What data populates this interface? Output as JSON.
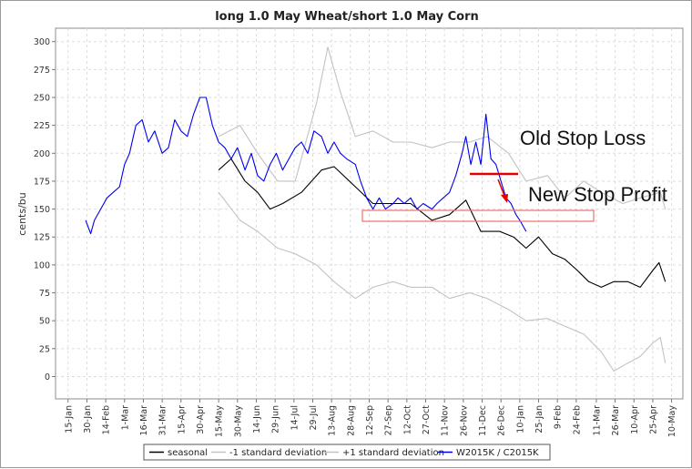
{
  "chart_data": {
    "type": "line",
    "title": "long 1.0 May Wheat/short 1.0 May Corn",
    "ylabel": "cents/bu",
    "xlabel": "",
    "ylim": [
      -20,
      312
    ],
    "yticks": [
      0,
      25,
      50,
      75,
      100,
      125,
      150,
      175,
      200,
      225,
      250,
      275,
      300
    ],
    "xlim": [
      "2015-01-05",
      "2015-05-19"
    ],
    "xtick_labels": [
      "15-Jan",
      "30-Jan",
      "14-Feb",
      "1-Mar",
      "16-Mar",
      "31-Mar",
      "15-Apr",
      "30-Apr",
      "15-May",
      "30-May",
      "14-Jun",
      "29-Jun",
      "14-Jul",
      "29-Jul",
      "13-Aug",
      "28-Aug",
      "12-Sep",
      "27-Sep",
      "12-Oct",
      "27-Oct",
      "11-Nov",
      "26-Nov",
      "11-Dec",
      "26-Dec",
      "10-Jan",
      "25-Jan",
      "9-Feb",
      "24-Feb",
      "11-Mar",
      "26-Mar",
      "10-Apr",
      "25-Apr",
      "10-May"
    ],
    "grid": true,
    "legend_position": "bottom",
    "series": [
      {
        "name": "seasonal",
        "color": "#000000",
        "x": [
          "15-May",
          "25-May",
          "5-Jun",
          "15-Jun",
          "25-Jun",
          "5-Jul",
          "20-Jul",
          "5-Aug",
          "15-Aug",
          "1-Sep",
          "15-Sep",
          "1-Oct",
          "15-Oct",
          "1-Nov",
          "15-Nov",
          "28-Nov",
          "10-Dec",
          "25-Dec",
          "5-Jan",
          "15-Jan",
          "25-Jan",
          "5-Feb",
          "15-Feb",
          "25-Feb",
          "5-Mar",
          "15-Mar",
          "25-Mar",
          "5-Apr",
          "15-Apr",
          "25-Apr",
          "30-Apr",
          "5-May"
        ],
        "y": [
          185,
          195,
          175,
          165,
          150,
          155,
          165,
          185,
          188,
          170,
          155,
          155,
          155,
          140,
          145,
          158,
          130,
          130,
          125,
          115,
          125,
          110,
          105,
          95,
          85,
          80,
          85,
          85,
          80,
          95,
          102,
          85
        ]
      },
      {
        "name": "-1 standard deviation",
        "color": "#c2c2c2",
        "x": [
          "15-May",
          "1-Jun",
          "15-Jun",
          "1-Jul",
          "15-Jul",
          "1-Aug",
          "15-Aug",
          "1-Sep",
          "15-Sep",
          "1-Oct",
          "15-Oct",
          "1-Nov",
          "15-Nov",
          "1-Dec",
          "15-Dec",
          "1-Jan",
          "15-Jan",
          "1-Feb",
          "15-Feb",
          "1-Mar",
          "15-Mar",
          "25-Mar",
          "5-Apr",
          "15-Apr",
          "25-Apr",
          "1-May",
          "5-May"
        ],
        "y": [
          165,
          140,
          130,
          115,
          110,
          100,
          85,
          70,
          80,
          85,
          80,
          80,
          70,
          75,
          70,
          60,
          50,
          52,
          45,
          38,
          22,
          5,
          12,
          18,
          30,
          35,
          12
        ]
      },
      {
        "name": "+1 standard deviation",
        "color": "#c2c2c2",
        "x": [
          "15-May",
          "1-Jun",
          "15-Jun",
          "1-Jul",
          "15-Jul",
          "1-Aug",
          "10-Aug",
          "20-Aug",
          "1-Sep",
          "15-Sep",
          "1-Oct",
          "15-Oct",
          "1-Nov",
          "15-Nov",
          "1-Dec",
          "15-Dec",
          "1-Jan",
          "15-Jan",
          "1-Feb",
          "15-Feb",
          "1-Mar",
          "15-Mar",
          "1-Apr",
          "15-Apr",
          "1-May",
          "5-May"
        ],
        "y": [
          215,
          225,
          200,
          175,
          175,
          245,
          295,
          255,
          215,
          220,
          210,
          210,
          205,
          210,
          210,
          215,
          200,
          175,
          180,
          160,
          175,
          165,
          155,
          160,
          165,
          150
        ]
      },
      {
        "name": "W2015K / C2015K",
        "color": "#0000ee",
        "x": [
          "29-Jan",
          "2-Feb",
          "5-Feb",
          "10-Feb",
          "15-Feb",
          "20-Feb",
          "25-Feb",
          "1-Mar",
          "5-Mar",
          "10-Mar",
          "15-Mar",
          "20-Mar",
          "25-Mar",
          "31-Mar",
          "5-Apr",
          "10-Apr",
          "15-Apr",
          "20-Apr",
          "25-Apr",
          "30-Apr",
          "5-May",
          "10-May",
          "15-May",
          "20-May",
          "25-May",
          "30-May",
          "5-Jun",
          "10-Jun",
          "15-Jun",
          "20-Jun",
          "25-Jun",
          "30-Jun",
          "5-Jul",
          "10-Jul",
          "15-Jul",
          "20-Jul",
          "25-Jul",
          "30-Jul",
          "5-Aug",
          "10-Aug",
          "15-Aug",
          "20-Aug",
          "25-Aug",
          "1-Sep",
          "5-Sep",
          "10-Sep",
          "15-Sep",
          "20-Sep",
          "25-Sep",
          "1-Oct",
          "5-Oct",
          "10-Oct",
          "15-Oct",
          "20-Oct",
          "25-Oct",
          "1-Nov",
          "5-Nov",
          "10-Nov",
          "15-Nov",
          "20-Nov",
          "25-Nov",
          "28-Nov",
          "2-Dec",
          "6-Dec",
          "10-Dec",
          "14-Dec",
          "18-Dec",
          "22-Dec",
          "26-Dec",
          "30-Dec",
          "3-Jan",
          "7-Jan",
          "10-Jan",
          "15-Jan"
        ],
        "y": [
          140,
          128,
          140,
          150,
          160,
          165,
          170,
          190,
          200,
          225,
          230,
          210,
          220,
          200,
          205,
          230,
          220,
          215,
          235,
          250,
          250,
          225,
          210,
          205,
          195,
          205,
          185,
          200,
          180,
          175,
          190,
          200,
          185,
          195,
          205,
          210,
          200,
          220,
          215,
          200,
          210,
          200,
          195,
          190,
          175,
          160,
          150,
          160,
          150,
          155,
          160,
          155,
          160,
          150,
          155,
          150,
          155,
          160,
          165,
          180,
          200,
          215,
          190,
          210,
          190,
          235,
          195,
          190,
          175,
          160,
          155,
          145,
          140,
          130
        ]
      }
    ],
    "annotations": [
      {
        "text": "Old Stop Loss",
        "at": {
          "x": "2-Jan",
          "y": 200
        },
        "marker": "red horizontal line",
        "marker_value": 183
      },
      {
        "text": "New Stop Profit",
        "at": {
          "x": "5-Jan",
          "y": 155
        },
        "marker": "red rectangle",
        "marker_range": [
          142,
          152
        ]
      }
    ]
  }
}
